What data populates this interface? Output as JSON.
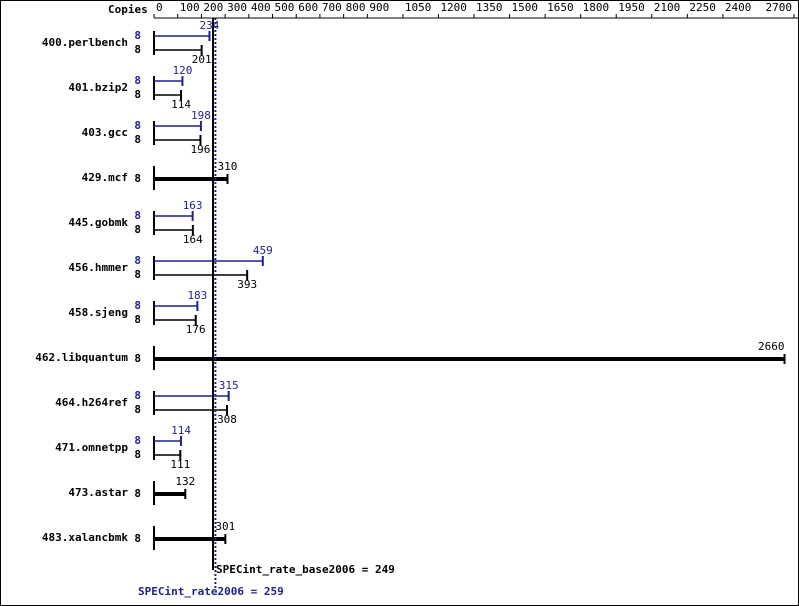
{
  "chart_data": {
    "type": "bar",
    "copies_header": "Copies",
    "categories": [
      "400.perlbench",
      "401.bzip2",
      "403.gcc",
      "429.mcf",
      "445.gobmk",
      "456.hmmer",
      "458.sjeng",
      "462.libquantum",
      "464.h264ref",
      "471.omnetpp",
      "473.astar",
      "483.xalancbmk"
    ],
    "series": [
      {
        "name": "SPECint_rate2006",
        "color": "#1f1f8f",
        "copies": [
          8,
          8,
          8,
          null,
          8,
          8,
          8,
          null,
          8,
          8,
          null,
          null
        ],
        "values": [
          234,
          120,
          198,
          null,
          163,
          459,
          183,
          null,
          315,
          114,
          null,
          null
        ]
      },
      {
        "name": "SPECint_rate_base2006",
        "color": "#000000",
        "copies": [
          8,
          8,
          8,
          8,
          8,
          8,
          8,
          8,
          8,
          8,
          8,
          8
        ],
        "values": [
          201,
          114,
          196,
          310,
          164,
          393,
          176,
          2660,
          308,
          111,
          132,
          301
        ]
      }
    ],
    "reference_lines": [
      {
        "label": "SPECint_rate_base2006 = 249",
        "value": 249,
        "color": "#000000"
      },
      {
        "label": "SPECint_rate2006 = 259",
        "value": 259,
        "color": "#1f1f8f"
      }
    ],
    "xlim": [
      0,
      2700
    ],
    "xticks": [
      0,
      100,
      200,
      300,
      400,
      500,
      600,
      700,
      800,
      900,
      1050,
      1200,
      1350,
      1500,
      1650,
      1800,
      1950,
      2100,
      2250,
      2400,
      2700
    ]
  }
}
